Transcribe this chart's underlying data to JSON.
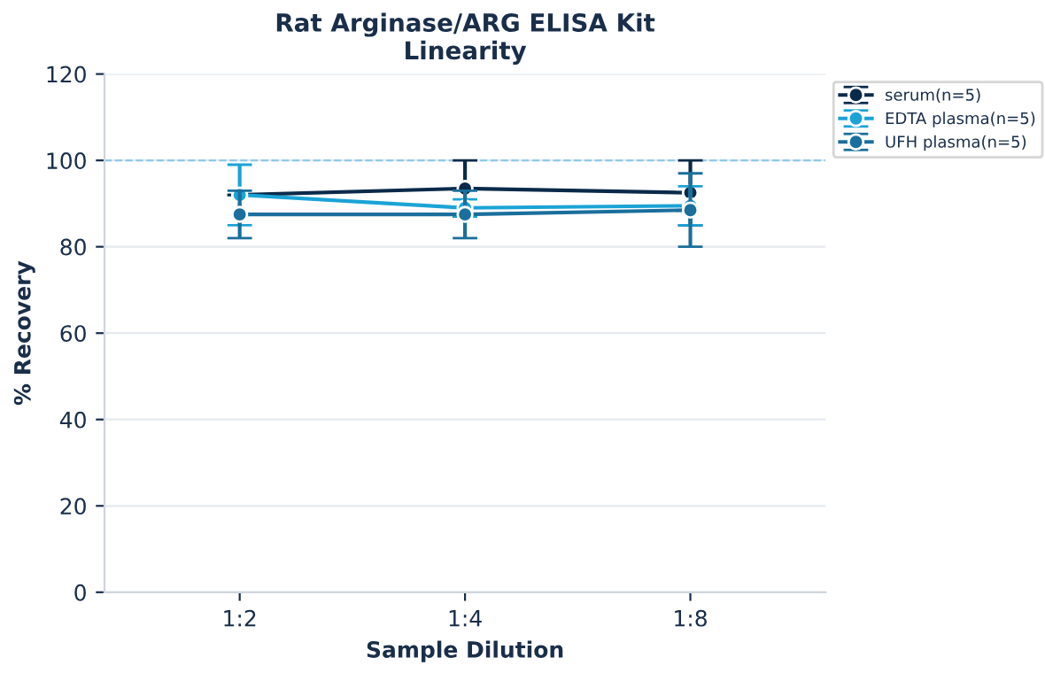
{
  "chart_data": {
    "type": "line",
    "title": "Rat Arginase/ARG ELISA Kit\nLinearity",
    "xlabel": "Sample Dilution",
    "ylabel": "% Recovery",
    "categories": [
      "1:2",
      "1:4",
      "1:8"
    ],
    "series": [
      {
        "name": "serum(n=5)",
        "color": "#0b2a4a",
        "values": [
          92,
          93.5,
          92.5
        ],
        "errors": [
          null,
          6.5,
          7.5
        ]
      },
      {
        "name": "EDTA plasma(n=5)",
        "color": "#1ba3d6",
        "values": [
          92,
          89,
          89.5
        ],
        "errors": [
          7,
          2,
          4.5
        ]
      },
      {
        "name": "UFH plasma(n=5)",
        "color": "#1a6f9c",
        "values": [
          87.5,
          87.5,
          88.5
        ],
        "errors": [
          5.5,
          5.5,
          8.5
        ]
      }
    ],
    "ylim": [
      0,
      120
    ],
    "yticks": [
      0,
      20,
      40,
      60,
      80,
      100,
      120
    ],
    "grid": "y",
    "legend": "top right",
    "marker": "circle",
    "line_style": "solid",
    "ref_lines": [
      {
        "axis": "y",
        "value": 100,
        "label": null,
        "color": "#8ecae6",
        "line_style": "dashed"
      }
    ]
  }
}
